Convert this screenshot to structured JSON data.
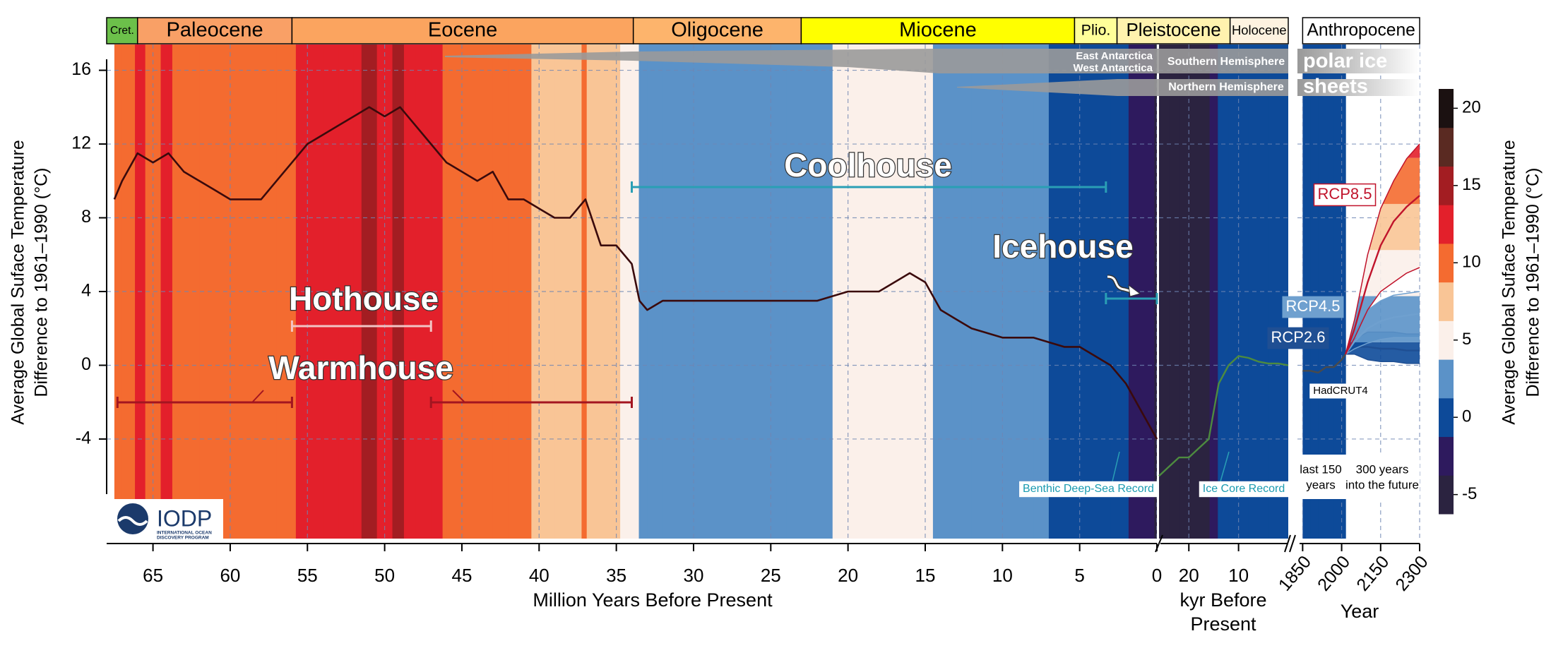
{
  "chart_data": [
    {
      "type": "line",
      "xlabel": "Million Years Before Present",
      "ylabel": [
        "Average Global Suface Temperature",
        "Difference to 1961–1990 (°C)"
      ],
      "x": [
        67.5,
        67,
        66,
        65,
        64,
        63,
        62,
        61,
        60,
        59,
        58,
        57,
        56,
        55,
        54,
        53,
        52,
        51,
        50,
        49,
        48,
        47,
        46,
        45,
        44,
        43,
        42,
        41,
        40,
        39,
        38,
        37,
        36,
        35,
        34,
        33.5,
        33,
        32,
        30,
        28,
        26,
        24,
        22,
        20,
        18,
        16,
        15,
        14,
        13,
        12,
        10,
        8,
        6,
        5,
        4,
        3,
        2,
        1,
        0
      ],
      "series": [
        {
          "name": "Benthic Deep-Sea Record",
          "color": "#3a0a0c",
          "values": [
            9,
            10,
            11.5,
            11,
            11.5,
            10.5,
            10,
            9.5,
            9,
            9,
            9,
            10,
            11,
            12,
            12.5,
            13,
            13.5,
            14,
            13.5,
            14,
            13,
            12,
            11,
            10.5,
            10,
            10.5,
            9,
            9,
            8.5,
            8,
            8,
            9,
            6.5,
            6.5,
            5.5,
            3.5,
            3,
            3.5,
            3.5,
            3.5,
            3.5,
            3.5,
            3.5,
            4,
            4,
            5,
            4.5,
            3,
            2.5,
            2,
            1.5,
            1.5,
            1,
            1,
            0.5,
            0,
            -1,
            -2.5,
            -4
          ]
        }
      ],
      "xlim": [
        68,
        0
      ],
      "xticks": [
        65,
        60,
        55,
        50,
        45,
        40,
        35,
        30,
        25,
        20,
        15,
        10,
        5,
        0
      ],
      "ylim": [
        -9.4,
        17.4
      ],
      "yticks": [
        -4,
        0,
        4,
        8,
        12,
        16
      ],
      "grid": true
    },
    {
      "type": "line",
      "xlabel": [
        "kyr Before",
        "Present"
      ],
      "x": [
        26,
        24,
        22,
        20,
        18,
        16,
        15,
        14,
        13,
        12,
        10,
        8,
        6,
        4,
        2,
        0
      ],
      "series": [
        {
          "name": "Ice Core Record",
          "color": "#4d8b3f",
          "values": [
            -6,
            -5.5,
            -5,
            -5,
            -4.5,
            -4,
            -2.5,
            -1,
            -0.5,
            0,
            0.5,
            0.4,
            0.2,
            0.1,
            0.1,
            0
          ]
        }
      ],
      "xlim": [
        26,
        0
      ],
      "xticks": [
        20,
        10
      ]
    },
    {
      "type": "line",
      "xlabel": "Year",
      "series": [
        {
          "name": "HadCRUT4",
          "color": "#4a4a4a",
          "x": [
            1850,
            1880,
            1910,
            1940,
            1970,
            2000,
            2015
          ],
          "values": [
            -0.3,
            -0.3,
            -0.4,
            -0.1,
            -0.1,
            0.3,
            0.6
          ]
        },
        {
          "name": "RCP2.6",
          "color": "#1f4f93",
          "x": [
            2015,
            2050,
            2100,
            2150,
            2200,
            2250,
            2300
          ],
          "values": [
            0.6,
            1,
            1,
            0.9,
            0.9,
            0.8,
            0.8
          ],
          "lower": [
            0.6,
            0.6,
            0.3,
            0.2,
            0.2,
            0.1,
            0.1
          ],
          "upper": [
            0.6,
            1.4,
            1.8,
            1.8,
            1.8,
            1.7,
            1.7
          ]
        },
        {
          "name": "RCP4.5",
          "color": "#6fa0cf",
          "x": [
            2015,
            2050,
            2100,
            2150,
            2200,
            2250,
            2300
          ],
          "values": [
            0.6,
            1.3,
            2,
            2.4,
            2.6,
            2.7,
            2.8
          ],
          "lower": [
            0.6,
            0.9,
            1.2,
            1.4,
            1.5,
            1.5,
            1.5
          ],
          "upper": [
            0.6,
            1.8,
            3,
            3.5,
            3.8,
            3.9,
            4
          ]
        },
        {
          "name": "RCP8.5",
          "color": "#c0132b",
          "x": [
            2015,
            2050,
            2100,
            2150,
            2200,
            2250,
            2300
          ],
          "values": [
            0.6,
            2,
            4.5,
            6.5,
            7.8,
            8.6,
            9.2
          ],
          "lower": [
            0.6,
            1.5,
            3,
            4,
            4.5,
            5,
            5.3
          ],
          "upper": [
            0.6,
            2.5,
            6,
            8.5,
            10,
            11.2,
            12
          ]
        }
      ],
      "xlim": [
        1830,
        2300
      ],
      "xticks": [
        1850,
        2000,
        2150,
        2300
      ],
      "annotations": [
        [
          "last 150",
          "years"
        ],
        [
          "300 years",
          "into the future"
        ]
      ]
    }
  ],
  "epochs": [
    {
      "name": "Cret.",
      "color": "#6cc04a",
      "start": 68,
      "end": 66
    },
    {
      "name": "Paleocene",
      "color": "#f9a066",
      "start": 66,
      "end": 56
    },
    {
      "name": "Eocene",
      "color": "#fba45f",
      "start": 56,
      "end": 33.9
    },
    {
      "name": "Oligocene",
      "color": "#fdb46c",
      "start": 33.9,
      "end": 23.03
    },
    {
      "name": "Miocene",
      "color": "#ffff00",
      "start": 23.03,
      "end": 5.33
    },
    {
      "name": "Plio.",
      "color": "#ffff99",
      "start": 5.33,
      "end": 2.58
    },
    {
      "name": "Pleistocene",
      "color": "#fff2ae",
      "start": 2.58,
      "end": 0.0117
    },
    {
      "name": "Holocene",
      "color": "#fef2e0",
      "start": 0.0117,
      "end": 0
    },
    {
      "name": "Anthropocene",
      "color": "#ffffff",
      "start": 1850,
      "end": 2300
    }
  ],
  "climate_states": [
    {
      "name": "Warmhouse",
      "color": "#a31520",
      "ranges": [
        [
          67.3,
          56
        ],
        [
          47,
          34
        ]
      ]
    },
    {
      "name": "Hothouse",
      "color": "#f2c4c4",
      "ranges": [
        [
          56,
          47
        ]
      ]
    },
    {
      "name": "Coolhouse",
      "color": "#2a9fb5",
      "ranges": [
        [
          34,
          3.3
        ]
      ]
    },
    {
      "name": "Icehouse",
      "color": "#2a9fb5",
      "ranges": [
        [
          3.3,
          0
        ]
      ]
    }
  ],
  "ice_sheets": {
    "southern": [
      "East Antarctica",
      "West Antarctica",
      "Southern Hemisphere"
    ],
    "northern": "Northern Hemisphere",
    "label": [
      "polar ice",
      "sheets"
    ]
  },
  "colorbar": {
    "label": [
      "Average Global Suface Temperature",
      "Difference to 1961–1990 (°C)"
    ],
    "bins": [
      -6.25,
      -3.75,
      -1.25,
      1.25,
      3.75,
      6.25,
      8.75,
      11.25,
      13.75,
      16.25,
      18.75,
      21.25
    ],
    "colors": [
      "#2b2340",
      "#2e1a5e",
      "#0d4a99",
      "#5b92c8",
      "#fbf0ea",
      "#f9c596",
      "#f46b30",
      "#e3202b",
      "#a31d22",
      "#5a2a22",
      "#1b1111"
    ],
    "ticks": [
      -5,
      0,
      5,
      10,
      15,
      20
    ]
  },
  "logo": {
    "name": "IODP",
    "subtitle": [
      "INTERNATIONAL OCEAN",
      "DISCOVERY PROGRAM"
    ]
  }
}
